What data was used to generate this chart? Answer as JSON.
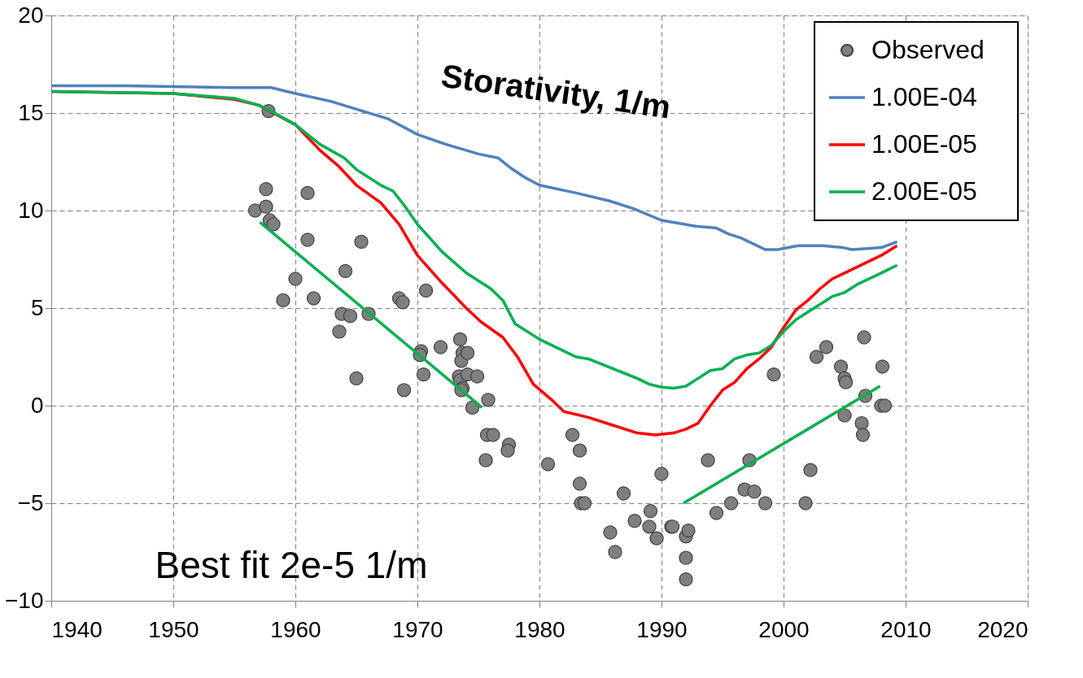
{
  "chart_data": {
    "type": "line",
    "xlim": [
      1940,
      2020
    ],
    "xticks": [
      1940,
      1950,
      1960,
      1970,
      1980,
      1990,
      2000,
      2010,
      2020
    ],
    "ylim": [
      -10,
      20
    ],
    "yticks": [
      -10,
      -5,
      0,
      5,
      10,
      15,
      20
    ],
    "grid": true,
    "legend": "top right",
    "annotations": [
      "Storativity, 1/m",
      "Best fit 2e-5 1/m"
    ],
    "series": [
      {
        "name": "Observed",
        "type": "scatter",
        "marker": "circle",
        "color": "#7f7f7f",
        "x": [
          1956.7,
          1957.6,
          1957.6,
          1957.9,
          1958.2,
          1957.8,
          1959.0,
          1960.0,
          1961.0,
          1961.0,
          1961.5,
          1963.6,
          1963.8,
          1964.1,
          1964.5,
          1965.0,
          1965.4,
          1966.0,
          1968.5,
          1968.8,
          1968.9,
          1970.7,
          1970.3,
          1970.2,
          1970.5,
          1971.9,
          1973.5,
          1973.7,
          1973.6,
          1974.1,
          1973.4,
          1973.5,
          1973.7,
          1973.6,
          1974.1,
          1974.9,
          1975.8,
          1974.5,
          1975.7,
          1976.2,
          1975.6,
          1977.5,
          1977.4,
          1980.7,
          1982.7,
          1983.3,
          1983.3,
          1983.4,
          1983.7,
          1985.8,
          1986.2,
          1986.9,
          1987.8,
          1989.0,
          1989.1,
          1989.6,
          1990.0,
          1990.8,
          1990.9,
          1992.0,
          1992.2,
          1992.0,
          1992.0,
          1993.8,
          1994.5,
          1995.7,
          1996.8,
          1997.2,
          1997.6,
          1998.5,
          1999.2,
          2001.8,
          2002.2,
          2002.7,
          2003.5,
          2004.7,
          2005.0,
          2005.1,
          2005.0,
          2006.4,
          2006.5,
          2006.6,
          2006.7,
          2008.0,
          2008.3,
          2008.1
        ],
        "values": [
          10.0,
          11.1,
          10.2,
          9.5,
          9.3,
          15.1,
          5.4,
          6.5,
          10.9,
          8.5,
          5.5,
          3.8,
          4.7,
          6.9,
          4.6,
          1.4,
          8.4,
          4.7,
          5.5,
          5.3,
          0.8,
          5.9,
          2.8,
          2.6,
          1.6,
          3.0,
          3.4,
          2.7,
          2.3,
          2.7,
          1.5,
          1.3,
          0.9,
          0.8,
          1.6,
          1.5,
          0.3,
          -0.1,
          -1.5,
          -1.5,
          -2.8,
          -2.0,
          -2.3,
          -3.0,
          -1.5,
          -2.3,
          -4.0,
          -5.0,
          -5.0,
          -6.5,
          -7.5,
          -4.5,
          -5.9,
          -6.2,
          -5.4,
          -6.8,
          -3.5,
          -6.2,
          -6.2,
          -6.7,
          -6.4,
          -7.8,
          -8.9,
          -2.8,
          -5.5,
          -5.0,
          -4.3,
          -2.8,
          -4.4,
          -5.0,
          1.6,
          -5.0,
          -3.3,
          2.5,
          3.0,
          2.0,
          1.4,
          1.2,
          -0.5,
          -0.9,
          -1.5,
          3.5,
          0.5,
          0.0,
          0.0,
          2.0
        ]
      },
      {
        "name": "1.00E-04",
        "color": "#4f81bd",
        "x": [
          1940,
          1946,
          1955,
          1958,
          1960,
          1962.9,
          1965.5,
          1967.6,
          1970,
          1972.3,
          1975,
          1976.6,
          1977.6,
          1978.8,
          1980,
          1983,
          1985.7,
          1987.7,
          1990,
          1992.8,
          1994.5,
          1995.5,
          1996.5,
          1998.5,
          1999.5,
          2001.2,
          2003.2,
          2004.9,
          2005.6,
          2008,
          2009.3
        ],
        "values": [
          16.4,
          16.4,
          16.3,
          16.3,
          16.0,
          15.6,
          15.1,
          14.7,
          13.9,
          13.4,
          12.9,
          12.7,
          12.2,
          11.7,
          11.3,
          10.9,
          10.5,
          10.1,
          9.5,
          9.2,
          9.1,
          8.8,
          8.6,
          8.0,
          8.0,
          8.2,
          8.2,
          8.1,
          8.0,
          8.1,
          8.4
        ]
      },
      {
        "name": "1.00E-05",
        "color": "#ff0000",
        "x": [
          1940,
          1950,
          1955,
          1957,
          1960,
          1962,
          1963.5,
          1965,
          1967,
          1968.5,
          1970,
          1972,
          1974,
          1975.2,
          1977,
          1978.2,
          1979.5,
          1981,
          1982,
          1984,
          1986,
          1988,
          1989.5,
          1991,
          1992,
          1993,
          1994,
          1995,
          1996,
          1997,
          1998,
          1999,
          2000,
          2001,
          2002,
          2003,
          2004,
          2005,
          2006,
          2007,
          2008,
          2009.3
        ],
        "values": [
          16.1,
          16.0,
          15.7,
          15.4,
          14.4,
          13.1,
          12.3,
          11.3,
          10.4,
          9.3,
          7.7,
          6.3,
          5.0,
          4.3,
          3.5,
          2.5,
          1.1,
          0.3,
          -0.3,
          -0.6,
          -1.0,
          -1.4,
          -1.5,
          -1.4,
          -1.2,
          -0.9,
          0.0,
          0.8,
          1.2,
          1.9,
          2.4,
          3.0,
          4.0,
          4.9,
          5.4,
          6.0,
          6.5,
          6.8,
          7.1,
          7.4,
          7.7,
          8.2
        ]
      },
      {
        "name": "2.00E-05",
        "color": "#00b050",
        "x": [
          1940,
          1950,
          1955,
          1957,
          1958,
          1960,
          1962,
          1964,
          1965,
          1967,
          1968,
          1969,
          1970,
          1972,
          1974,
          1976,
          1977,
          1978,
          1980,
          1982,
          1983,
          1984,
          1986,
          1988,
          1989,
          1990,
          1991,
          1992,
          1993,
          1994,
          1995,
          1996,
          1997,
          1998,
          1999,
          2000,
          2001,
          2002,
          2003,
          2004,
          2005,
          2006,
          2007,
          2008,
          2009.3
        ],
        "values": [
          16.1,
          16.0,
          15.75,
          15.4,
          15.1,
          14.4,
          13.4,
          12.7,
          12.1,
          11.3,
          11.0,
          10.2,
          9.3,
          7.9,
          6.8,
          6.0,
          5.4,
          4.2,
          3.4,
          2.8,
          2.5,
          2.4,
          1.9,
          1.4,
          1.1,
          0.95,
          0.9,
          1.0,
          1.4,
          1.8,
          1.9,
          2.4,
          2.6,
          2.7,
          3.1,
          3.8,
          4.4,
          4.8,
          5.2,
          5.6,
          5.8,
          6.2,
          6.5,
          6.8,
          7.2
        ]
      },
      {
        "type": "line",
        "color": "#00b050",
        "x": [
          1957.1,
          1975.3
        ],
        "values": [
          9.4,
          -0.1
        ]
      },
      {
        "type": "line",
        "color": "#00b050",
        "x": [
          1991.8,
          2007.9
        ],
        "values": [
          -5.0,
          1.0
        ]
      }
    ]
  }
}
